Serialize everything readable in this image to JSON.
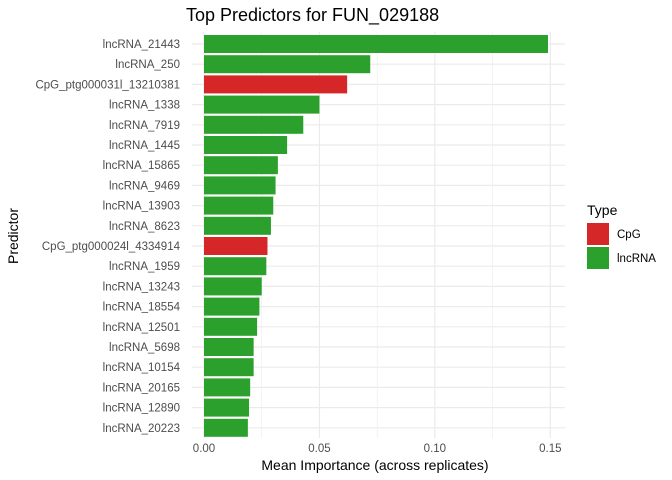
{
  "chart_data": {
    "type": "bar",
    "orientation": "horizontal",
    "title": "Top Predictors for FUN_029188",
    "xlabel": "Mean Importance (across replicates)",
    "ylabel": "Predictor",
    "xlim": [
      0,
      0.155
    ],
    "x_ticks": [
      0.0,
      0.05,
      0.1,
      0.15
    ],
    "x_tick_labels": [
      "0.00",
      "0.05",
      "0.10",
      "0.15"
    ],
    "grid": true,
    "legend": {
      "title": "Type",
      "placement": "right",
      "items": [
        {
          "label": "CpG",
          "color": "#d62728"
        },
        {
          "label": "lncRNA",
          "color": "#2ca02c"
        }
      ]
    },
    "bars": [
      {
        "label": "lncRNA_21443",
        "value": 0.149,
        "type": "lncRNA"
      },
      {
        "label": "lncRNA_250",
        "value": 0.072,
        "type": "lncRNA"
      },
      {
        "label": "CpG_ptg000031l_13210381",
        "value": 0.062,
        "type": "CpG"
      },
      {
        "label": "lncRNA_1338",
        "value": 0.05,
        "type": "lncRNA"
      },
      {
        "label": "lncRNA_7919",
        "value": 0.043,
        "type": "lncRNA"
      },
      {
        "label": "lncRNA_1445",
        "value": 0.036,
        "type": "lncRNA"
      },
      {
        "label": "lncRNA_15865",
        "value": 0.032,
        "type": "lncRNA"
      },
      {
        "label": "lncRNA_9469",
        "value": 0.031,
        "type": "lncRNA"
      },
      {
        "label": "lncRNA_13903",
        "value": 0.03,
        "type": "lncRNA"
      },
      {
        "label": "lncRNA_8623",
        "value": 0.029,
        "type": "lncRNA"
      },
      {
        "label": "CpG_ptg000024l_4334914",
        "value": 0.0275,
        "type": "CpG"
      },
      {
        "label": "lncRNA_1959",
        "value": 0.027,
        "type": "lncRNA"
      },
      {
        "label": "lncRNA_13243",
        "value": 0.025,
        "type": "lncRNA"
      },
      {
        "label": "lncRNA_18554",
        "value": 0.024,
        "type": "lncRNA"
      },
      {
        "label": "lncRNA_12501",
        "value": 0.023,
        "type": "lncRNA"
      },
      {
        "label": "lncRNA_5698",
        "value": 0.0215,
        "type": "lncRNA"
      },
      {
        "label": "lncRNA_10154",
        "value": 0.0215,
        "type": "lncRNA"
      },
      {
        "label": "lncRNA_20165",
        "value": 0.02,
        "type": "lncRNA"
      },
      {
        "label": "lncRNA_12890",
        "value": 0.0195,
        "type": "lncRNA"
      },
      {
        "label": "lncRNA_20223",
        "value": 0.019,
        "type": "lncRNA"
      }
    ]
  }
}
